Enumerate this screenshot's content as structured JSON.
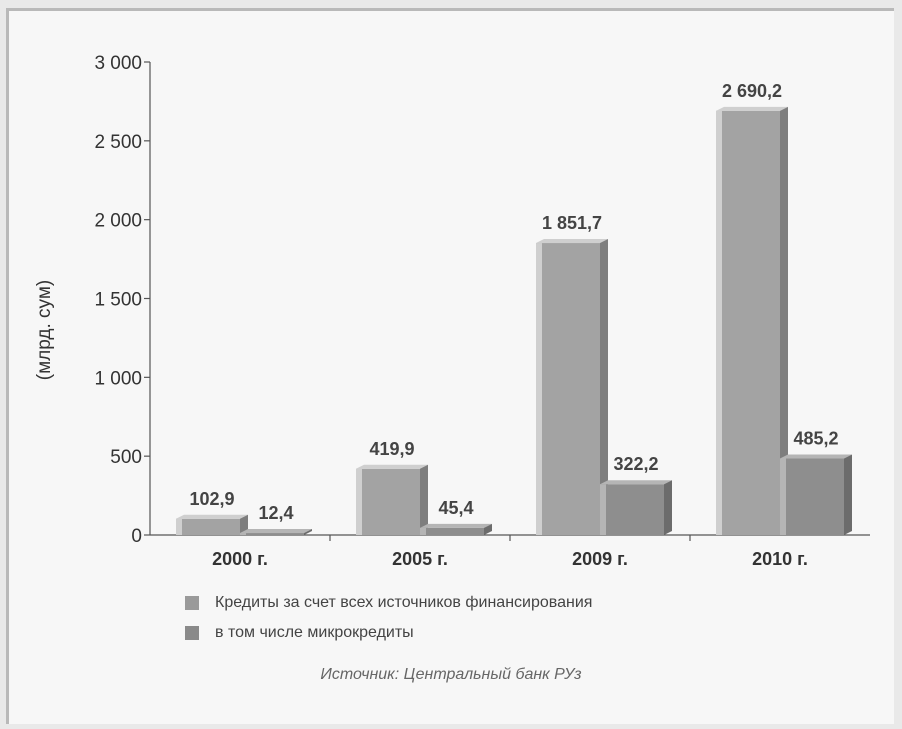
{
  "chart_data": {
    "type": "bar",
    "ylabel": "(млрд. сум)",
    "ylim": [
      0,
      3000
    ],
    "yticks": [
      "0",
      "500",
      "1 000",
      "1 500",
      "2 000",
      "2 500",
      "3 000"
    ],
    "ytick_values": [
      0,
      500,
      1000,
      1500,
      2000,
      2500,
      3000
    ],
    "categories": [
      "2000 г.",
      "2005 г.",
      "2009 г.",
      "2010 г."
    ],
    "series": [
      {
        "name": "Кредиты за счет всех источников финансирования",
        "values": [
          102.9,
          419.9,
          1851.7,
          2690.2
        ],
        "labels": [
          "102,9",
          "419,9",
          "1 851,7",
          "2 690,2"
        ],
        "color": "#9a9a9a"
      },
      {
        "name": "в том числе микрокредиты",
        "values": [
          12.4,
          45.4,
          322.2,
          485.2
        ],
        "labels": [
          "12,4",
          "45,4",
          "322,2",
          "485,2"
        ],
        "color": "#8a8a8a"
      }
    ],
    "legend_position": "bottom",
    "grid": false
  },
  "source_text": "Источник: Центральный банк РУз"
}
